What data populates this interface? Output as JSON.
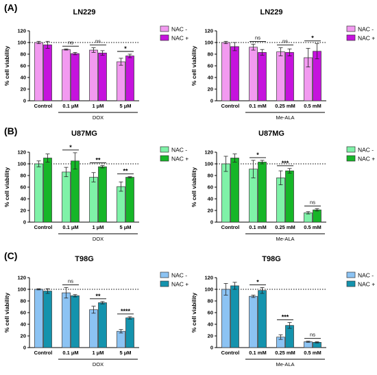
{
  "panels": [
    {
      "letter": "(A)"
    },
    {
      "letter": "(B)"
    },
    {
      "letter": "(C)"
    }
  ],
  "chart_data": [
    {
      "type": "bar",
      "title": "LN229",
      "ylabel": "% cell viability",
      "ylim": [
        0,
        120
      ],
      "yticks": [
        0,
        20,
        40,
        60,
        80,
        100,
        120
      ],
      "categories": [
        "Control",
        "0.1 μM",
        "1 μM",
        "5 μM"
      ],
      "group_label": "DOX",
      "group_start": 1,
      "reference_line": 100,
      "colors": [
        "#f29af0",
        "#c513dd"
      ],
      "series": [
        {
          "name": "NAC -",
          "values": [
            100,
            88,
            87,
            67
          ],
          "errors": [
            2,
            1,
            4,
            6
          ]
        },
        {
          "name": "NAC +",
          "values": [
            96,
            81,
            82,
            77
          ],
          "errors": [
            6,
            2,
            4,
            3
          ]
        }
      ],
      "annotations": [
        {
          "index": 1,
          "text": "ns"
        },
        {
          "index": 2,
          "text": "ns"
        },
        {
          "index": 3,
          "text": "*"
        }
      ]
    },
    {
      "type": "bar",
      "title": "LN229",
      "ylabel": "% cell viability",
      "ylim": [
        0,
        120
      ],
      "yticks": [
        0,
        20,
        40,
        60,
        80,
        100,
        120
      ],
      "categories": [
        "Control",
        "0.1 mM",
        "0.25 mM",
        "0.5 mM"
      ],
      "group_label": "Me-ALA",
      "group_start": 1,
      "reference_line": 100,
      "colors": [
        "#f29af0",
        "#c513dd"
      ],
      "series": [
        {
          "name": "NAC -",
          "values": [
            100,
            92,
            84,
            74
          ],
          "errors": [
            2,
            5,
            7,
            16
          ]
        },
        {
          "name": "NAC +",
          "values": [
            93,
            83,
            83,
            85
          ],
          "errors": [
            7,
            5,
            6,
            13
          ]
        }
      ],
      "annotations": [
        {
          "index": 1,
          "text": "ns"
        },
        {
          "index": 2,
          "text": "ns"
        },
        {
          "index": 3,
          "text": "*"
        }
      ]
    },
    {
      "type": "bar",
      "title": "U87MG",
      "ylabel": "% cell viability",
      "ylim": [
        0,
        120
      ],
      "yticks": [
        0,
        20,
        40,
        60,
        80,
        100,
        120
      ],
      "categories": [
        "Control",
        "0.1 μM",
        "1 μM",
        "5 μM"
      ],
      "group_label": "DOX",
      "group_start": 1,
      "reference_line": 100,
      "colors": [
        "#7ff2a8",
        "#16b628"
      ],
      "series": [
        {
          "name": "NAC -",
          "values": [
            100,
            86,
            77,
            61
          ],
          "errors": [
            5,
            8,
            8,
            8
          ]
        },
        {
          "name": "NAC +",
          "values": [
            110,
            105,
            95,
            77
          ],
          "errors": [
            7,
            14,
            2,
            1
          ]
        }
      ],
      "annotations": [
        {
          "index": 1,
          "text": "*"
        },
        {
          "index": 2,
          "text": "**"
        },
        {
          "index": 3,
          "text": "**"
        }
      ]
    },
    {
      "type": "bar",
      "title": "U87MG",
      "ylabel": "% cell viability",
      "ylim": [
        0,
        120
      ],
      "yticks": [
        0,
        20,
        40,
        60,
        80,
        100,
        120
      ],
      "categories": [
        "Control",
        "0.1 mM",
        "0.25 mM",
        "0.5 mM"
      ],
      "group_label": "Me-ALA",
      "group_start": 1,
      "reference_line": 100,
      "colors": [
        "#7ff2a8",
        "#16b628"
      ],
      "series": [
        {
          "name": "NAC -",
          "values": [
            100,
            91,
            76,
            16
          ],
          "errors": [
            13,
            15,
            12,
            2
          ]
        },
        {
          "name": "NAC +",
          "values": [
            110,
            103,
            88,
            21
          ],
          "errors": [
            7,
            3,
            4,
            2
          ]
        }
      ],
      "annotations": [
        {
          "index": 1,
          "text": "*"
        },
        {
          "index": 2,
          "text": "***"
        },
        {
          "index": 3,
          "text": "ns"
        }
      ]
    },
    {
      "type": "bar",
      "title": "T98G",
      "ylabel": "% cell viability",
      "ylim": [
        0,
        120
      ],
      "yticks": [
        0,
        20,
        40,
        60,
        80,
        100,
        120
      ],
      "categories": [
        "Control",
        "0.1 μM",
        "1 μM",
        "5 μM"
      ],
      "group_label": "DOX",
      "group_start": 1,
      "reference_line": 100,
      "colors": [
        "#8cc3f3",
        "#1493ad"
      ],
      "series": [
        {
          "name": "NAC -",
          "values": [
            100,
            94,
            65,
            28
          ],
          "errors": [
            1,
            9,
            6,
            3
          ]
        },
        {
          "name": "NAC +",
          "values": [
            97,
            89,
            77,
            51
          ],
          "errors": [
            4,
            2,
            2,
            2
          ]
        }
      ],
      "annotations": [
        {
          "index": 1,
          "text": "ns"
        },
        {
          "index": 2,
          "text": "**"
        },
        {
          "index": 3,
          "text": "****"
        }
      ]
    },
    {
      "type": "bar",
      "title": "T98G",
      "ylabel": "% cell viability",
      "ylim": [
        0,
        120
      ],
      "yticks": [
        0,
        20,
        40,
        60,
        80,
        100,
        120
      ],
      "categories": [
        "Control",
        "0.1 mM",
        "0.25 mM",
        "0.5 mM"
      ],
      "group_label": "Me-ALA",
      "group_start": 1,
      "reference_line": 100,
      "colors": [
        "#8cc3f3",
        "#1493ad"
      ],
      "series": [
        {
          "name": "NAC -",
          "values": [
            100,
            88,
            18,
            10
          ],
          "errors": [
            10,
            2,
            4,
            1
          ]
        },
        {
          "name": "NAC +",
          "values": [
            106,
            98,
            38,
            9
          ],
          "errors": [
            6,
            5,
            5,
            1
          ]
        }
      ],
      "annotations": [
        {
          "index": 1,
          "text": "*"
        },
        {
          "index": 2,
          "text": "***"
        },
        {
          "index": 3,
          "text": "ns"
        }
      ]
    }
  ]
}
